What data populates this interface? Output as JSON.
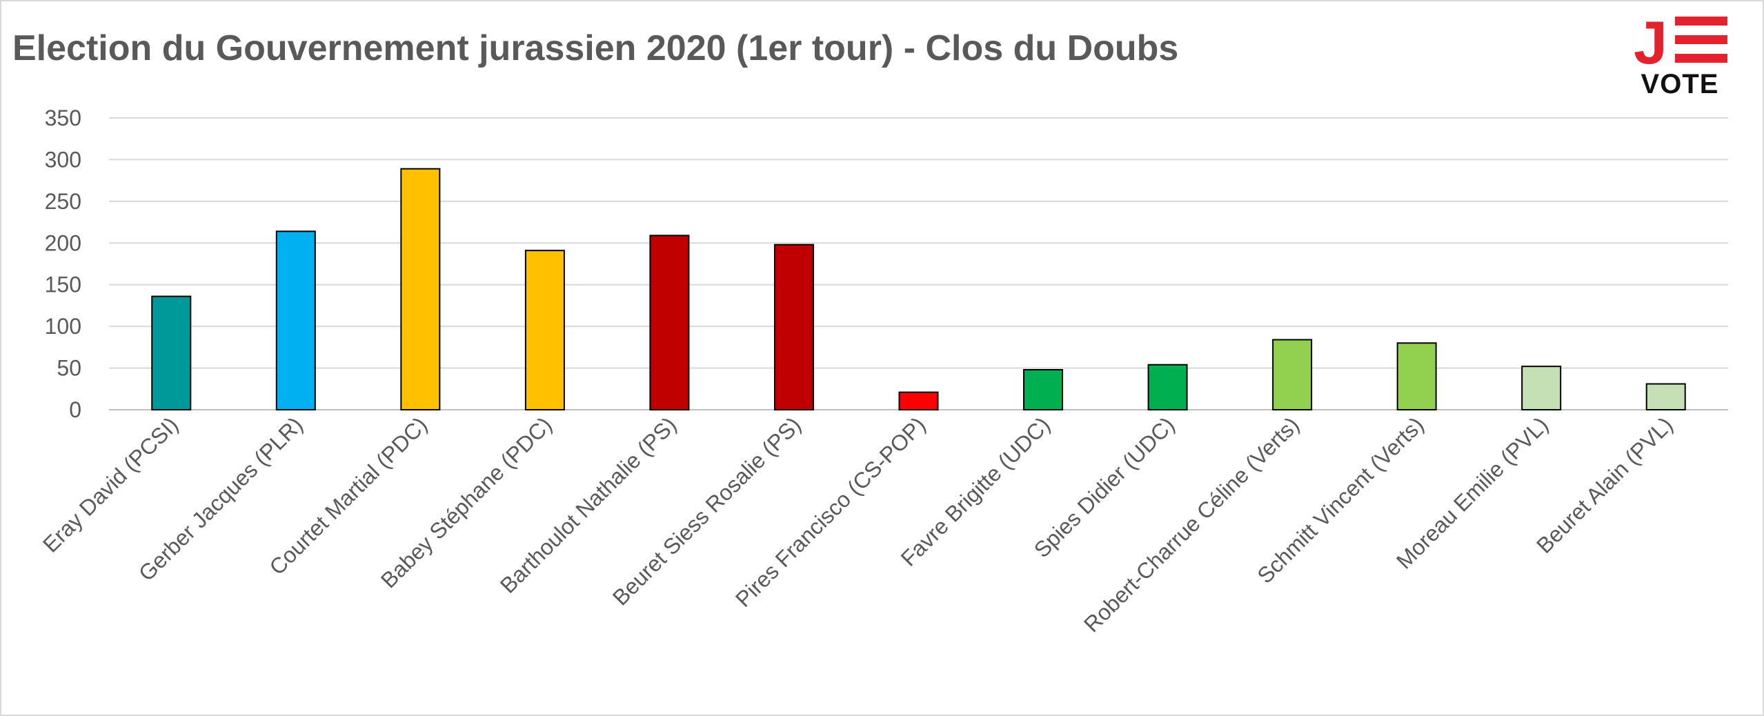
{
  "chart_data": {
    "type": "bar",
    "title": "Election du Gouvernement jurassien 2020 (1er tour) - Clos du Doubs",
    "xlabel": "",
    "ylabel": "",
    "ylim": [
      0,
      350
    ],
    "yticks": [
      0,
      50,
      100,
      150,
      200,
      250,
      300,
      350
    ],
    "grid": true,
    "categories": [
      "Eray David (PCSI)",
      "Gerber Jacques (PLR)",
      "Courtet Martial (PDC)",
      "Babey Stéphane (PDC)",
      "Barthoulot Nathalie (PS)",
      "Beuret Siess Rosalie (PS)",
      "Pires Francisco (CS-POP)",
      "Favre Brigitte (UDC)",
      "Spies Didier (UDC)",
      "Robert-Charrue Céline (Verts)",
      "Schmitt Vincent (Verts)",
      "Moreau Emilie (PVL)",
      "Beuret Alain (PVL)"
    ],
    "values": [
      136,
      214,
      289,
      191,
      209,
      198,
      21,
      48,
      54,
      84,
      80,
      52,
      31
    ],
    "colors": [
      "#009999",
      "#00b0f0",
      "#ffc000",
      "#ffc000",
      "#c00000",
      "#c00000",
      "#ff0000",
      "#00b050",
      "#00b050",
      "#92d050",
      "#92d050",
      "#c5e0b4",
      "#c5e0b4"
    ]
  },
  "logo": {
    "letter": "J",
    "text": "VOTE",
    "letter_color": "#e3222d",
    "text_color": "#111111"
  }
}
